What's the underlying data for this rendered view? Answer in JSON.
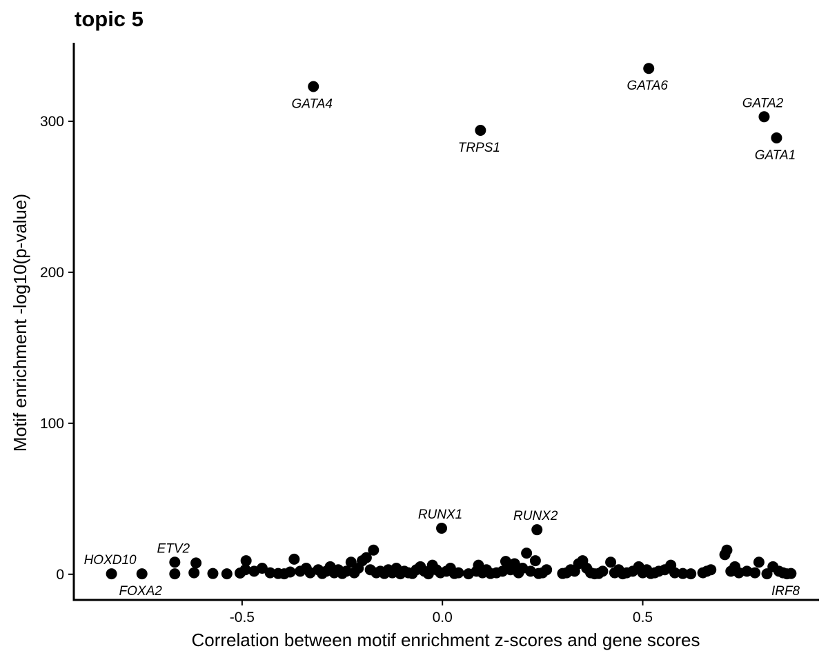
{
  "chart_data": {
    "type": "scatter",
    "title": "topic 5",
    "xlabel": "Correlation between motif enrichment z-scores and gene scores",
    "ylabel": "Motif enrichment -log10(p-value)",
    "xlim": [
      -0.92,
      0.94
    ],
    "ylim": [
      -17,
      352
    ],
    "x_ticks": [
      -0.5,
      0.0,
      0.5
    ],
    "x_tick_labels": [
      "-0.5",
      "0.0",
      "0.5"
    ],
    "y_ticks": [
      0,
      100,
      200,
      300
    ],
    "y_tick_labels": [
      "0",
      "100",
      "200",
      "300"
    ],
    "grid": false,
    "legend": "none",
    "point_color": "#000000",
    "labeled_points": [
      {
        "label": "GATA6",
        "x": 0.515,
        "y": 335,
        "pos": "below"
      },
      {
        "label": "GATA4",
        "x": -0.322,
        "y": 323,
        "pos": "below"
      },
      {
        "label": "GATA2",
        "x": 0.803,
        "y": 303,
        "pos": "above"
      },
      {
        "label": "TRPS1",
        "x": 0.095,
        "y": 294,
        "pos": "below"
      },
      {
        "label": "GATA1",
        "x": 0.834,
        "y": 289,
        "pos": "below"
      },
      {
        "label": "RUNX1",
        "x": -0.002,
        "y": 30.5,
        "pos": "above"
      },
      {
        "label": "RUNX2",
        "x": 0.236,
        "y": 29.5,
        "pos": "above"
      },
      {
        "label": "ETV2",
        "x": -0.668,
        "y": 8,
        "pos": "above"
      },
      {
        "label": "HOXD10",
        "x": -0.826,
        "y": 0.3,
        "pos": "above"
      },
      {
        "label": "FOXA2",
        "x": -0.75,
        "y": 0.3,
        "pos": "below"
      },
      {
        "label": "IRF8",
        "x": 0.86,
        "y": 0.3,
        "pos": "below"
      }
    ],
    "points": [
      [
        -0.668,
        0.3
      ],
      [
        -0.615,
        7.5
      ],
      [
        -0.62,
        1
      ],
      [
        -0.573,
        0.5
      ],
      [
        -0.538,
        0.3
      ],
      [
        -0.505,
        0.8
      ],
      [
        -0.492,
        3
      ],
      [
        -0.49,
        9
      ],
      [
        -0.47,
        2
      ],
      [
        -0.45,
        4
      ],
      [
        -0.43,
        1
      ],
      [
        -0.41,
        0.5
      ],
      [
        -0.395,
        0.3
      ],
      [
        -0.38,
        1.5
      ],
      [
        -0.37,
        10
      ],
      [
        -0.355,
        2
      ],
      [
        -0.34,
        4
      ],
      [
        -0.33,
        1
      ],
      [
        -0.31,
        3
      ],
      [
        -0.3,
        0.5
      ],
      [
        -0.29,
        2
      ],
      [
        -0.28,
        5
      ],
      [
        -0.27,
        1
      ],
      [
        -0.26,
        3
      ],
      [
        -0.25,
        0.5
      ],
      [
        -0.24,
        2
      ],
      [
        -0.228,
        8
      ],
      [
        -0.22,
        1
      ],
      [
        -0.21,
        4
      ],
      [
        -0.2,
        9
      ],
      [
        -0.19,
        11
      ],
      [
        -0.18,
        3
      ],
      [
        -0.172,
        16
      ],
      [
        -0.165,
        1
      ],
      [
        -0.155,
        2
      ],
      [
        -0.145,
        0.5
      ],
      [
        -0.135,
        3
      ],
      [
        -0.125,
        1
      ],
      [
        -0.115,
        4
      ],
      [
        -0.105,
        0.3
      ],
      [
        -0.095,
        2
      ],
      [
        -0.085,
        1
      ],
      [
        -0.075,
        0.5
      ],
      [
        -0.065,
        3
      ],
      [
        -0.055,
        5
      ],
      [
        -0.045,
        2
      ],
      [
        -0.035,
        0.3
      ],
      [
        -0.025,
        6
      ],
      [
        -0.015,
        3
      ],
      [
        -0.005,
        1
      ],
      [
        0.01,
        2
      ],
      [
        0.02,
        4
      ],
      [
        0.03,
        0.5
      ],
      [
        0.04,
        1
      ],
      [
        0.065,
        0.3
      ],
      [
        0.085,
        2
      ],
      [
        0.09,
        6
      ],
      [
        0.1,
        1
      ],
      [
        0.11,
        3
      ],
      [
        0.12,
        0.5
      ],
      [
        0.135,
        1
      ],
      [
        0.15,
        2
      ],
      [
        0.158,
        8.5
      ],
      [
        0.17,
        3
      ],
      [
        0.18,
        7
      ],
      [
        0.19,
        1
      ],
      [
        0.2,
        4
      ],
      [
        0.21,
        14
      ],
      [
        0.22,
        2
      ],
      [
        0.232,
        9
      ],
      [
        0.24,
        0.5
      ],
      [
        0.25,
        1
      ],
      [
        0.26,
        3
      ],
      [
        0.3,
        0.5
      ],
      [
        0.31,
        1
      ],
      [
        0.32,
        3
      ],
      [
        0.33,
        2
      ],
      [
        0.34,
        7
      ],
      [
        0.35,
        9
      ],
      [
        0.36,
        4
      ],
      [
        0.37,
        1
      ],
      [
        0.38,
        0.3
      ],
      [
        0.39,
        0.5
      ],
      [
        0.4,
        2
      ],
      [
        0.42,
        8
      ],
      [
        0.43,
        1
      ],
      [
        0.44,
        3
      ],
      [
        0.45,
        0.3
      ],
      [
        0.46,
        1
      ],
      [
        0.475,
        2
      ],
      [
        0.49,
        5
      ],
      [
        0.5,
        1
      ],
      [
        0.51,
        3
      ],
      [
        0.52,
        0.5
      ],
      [
        0.53,
        1
      ],
      [
        0.54,
        2
      ],
      [
        0.555,
        3
      ],
      [
        0.57,
        6
      ],
      [
        0.58,
        1
      ],
      [
        0.6,
        0.5
      ],
      [
        0.62,
        0.3
      ],
      [
        0.65,
        1
      ],
      [
        0.66,
        2
      ],
      [
        0.67,
        3
      ],
      [
        0.705,
        13
      ],
      [
        0.71,
        16
      ],
      [
        0.72,
        2
      ],
      [
        0.73,
        5
      ],
      [
        0.74,
        1
      ],
      [
        0.76,
        2
      ],
      [
        0.78,
        1
      ],
      [
        0.79,
        8
      ],
      [
        0.81,
        0.3
      ],
      [
        0.825,
        5
      ],
      [
        0.84,
        2
      ],
      [
        0.85,
        1
      ],
      [
        0.87,
        0.5
      ]
    ]
  }
}
